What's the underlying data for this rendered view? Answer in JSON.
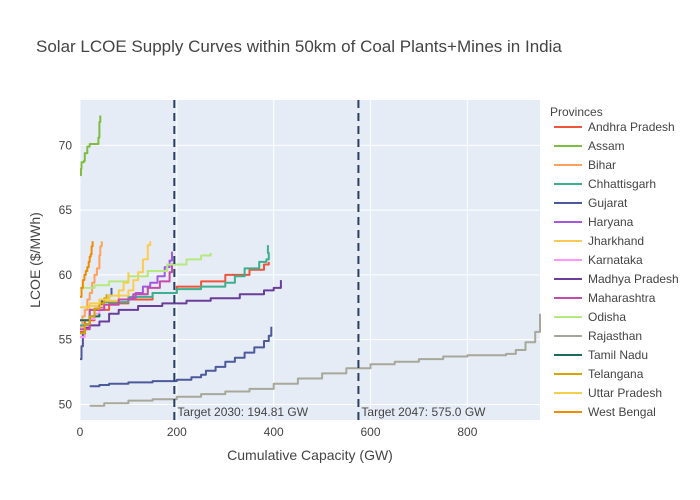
{
  "chart_data": {
    "type": "line",
    "title": "Solar LCOE Supply Curves within 50km of Coal Plants+Mines in India",
    "xlabel": "Cumulative Capacity (GW)",
    "ylabel": "LCOE ($/MWh)",
    "xlim": [
      0,
      950
    ],
    "ylim": [
      48.8,
      73.5
    ],
    "xticks": [
      0,
      200,
      400,
      600,
      800
    ],
    "yticks": [
      50,
      55,
      60,
      65,
      70
    ],
    "grid": true,
    "plot_background": "#e5ecf6",
    "legend": {
      "title": "Provinces",
      "placement": "right"
    },
    "annotations": [
      {
        "x": 194.81,
        "text": "Target 2030: 194.81 GW",
        "style": "dashed",
        "color": "#2a3f5f"
      },
      {
        "x": 575.0,
        "text": "Target 2047: 575.0 GW",
        "style": "dashed",
        "color": "#2a3f5f"
      }
    ],
    "series": [
      {
        "name": "Andhra Pradesh",
        "color": "#EF553B",
        "x": [
          0,
          10,
          30,
          60,
          100,
          150,
          200,
          250,
          300,
          350,
          380,
          390
        ],
        "y": [
          55.6,
          56.5,
          57.3,
          57.8,
          58.1,
          58.6,
          59.1,
          59.5,
          60.0,
          60.4,
          60.8,
          61.0
        ]
      },
      {
        "name": "Assam",
        "color": "#7fbc41",
        "x": [
          0,
          2,
          3,
          5,
          8,
          10,
          15,
          20,
          30,
          38,
          40,
          42
        ],
        "y": [
          67.7,
          68.2,
          68.7,
          68.7,
          68.8,
          69.4,
          69.9,
          70.1,
          70.1,
          70.6,
          71.8,
          72.3
        ]
      },
      {
        "name": "Bihar",
        "color": "#FFA15A",
        "x": [
          0,
          5,
          10,
          15,
          20,
          25,
          30,
          35,
          40,
          42,
          45
        ],
        "y": [
          56.0,
          56.8,
          57.3,
          58.1,
          58.6,
          59.4,
          60.0,
          60.5,
          61.5,
          62.2,
          62.6
        ]
      },
      {
        "name": "Chhattisgarh",
        "color": "#3daf8f",
        "x": [
          0,
          20,
          50,
          100,
          150,
          200,
          250,
          300,
          320,
          340,
          370,
          385,
          390,
          388
        ],
        "y": [
          56.1,
          57.3,
          57.9,
          58.3,
          58.6,
          58.9,
          59.1,
          59.4,
          59.9,
          60.5,
          61.0,
          61.2,
          61.7,
          62.3
        ]
      },
      {
        "name": "Gujarat",
        "color": "#4c5a9c",
        "x": [
          0,
          3,
          6,
          10,
          20,
          30,
          45,
          60,
          65
        ],
        "y": [
          53.5,
          54.5,
          55.4,
          56.2,
          56.8,
          57.4,
          58.0,
          58.4,
          59.0
        ]
      },
      {
        "name": "Haryana",
        "color": "#a358e0",
        "x": [
          100,
          115,
          130,
          145,
          160,
          175,
          185,
          190
        ],
        "y": [
          58.2,
          58.6,
          59.1,
          59.4,
          59.9,
          60.6,
          61.1,
          61.8
        ]
      },
      {
        "name": "Jharkhand",
        "color": "#FECB52",
        "x": [
          0,
          20,
          50,
          80,
          100,
          110,
          120,
          130,
          140,
          145
        ],
        "y": [
          56.5,
          57.6,
          58.0,
          58.4,
          58.8,
          59.6,
          60.2,
          61.2,
          62.3,
          62.6
        ]
      },
      {
        "name": "Karnataka",
        "color": "#ff97ff",
        "x": [
          0,
          10,
          20,
          30,
          40,
          50
        ],
        "y": [
          55.2,
          56.0,
          56.6,
          57.0,
          57.4,
          57.8
        ]
      },
      {
        "name": "Madhya Pradesh",
        "color": "#6a3d9a",
        "x": [
          0,
          10,
          20,
          40,
          60,
          80,
          120,
          170,
          220,
          270,
          330,
          380,
          400,
          415
        ],
        "y": [
          55.5,
          55.9,
          56.1,
          56.4,
          57.0,
          57.3,
          57.6,
          57.8,
          58.0,
          58.2,
          58.5,
          58.8,
          59.0,
          59.6
        ]
      },
      {
        "name": "Maharashtra",
        "color": "#c44ba6",
        "x": [
          0,
          20,
          50,
          80,
          110,
          140,
          165,
          185,
          190
        ],
        "y": [
          55.8,
          57.3,
          57.7,
          58.1,
          58.5,
          59.0,
          59.5,
          60.2,
          60.9
        ]
      },
      {
        "name": "Odisha",
        "color": "#b6e880",
        "x": [
          0,
          30,
          60,
          100,
          140,
          180,
          220,
          250,
          270
        ],
        "y": [
          59.0,
          59.2,
          59.5,
          59.9,
          60.3,
          60.8,
          61.2,
          61.5,
          61.7
        ]
      },
      {
        "name": "Rajasthan",
        "color": "#a7a79a",
        "x": [
          20,
          50,
          100,
          150,
          200,
          250,
          300,
          350,
          400,
          450,
          500,
          550,
          600,
          650,
          700,
          750,
          800,
          850,
          880,
          900,
          920,
          940,
          950
        ],
        "y": [
          49.9,
          50.1,
          50.3,
          50.4,
          50.6,
          50.8,
          51.0,
          51.2,
          51.6,
          52.0,
          52.4,
          52.8,
          53.1,
          53.3,
          53.5,
          53.7,
          53.8,
          53.8,
          53.9,
          54.2,
          54.8,
          55.6,
          57.0
        ]
      },
      {
        "name": "Tamil Nadu",
        "color": "#1b6b5a",
        "x": [
          0,
          20,
          40
        ],
        "y": [
          56.5,
          56.8,
          57.0
        ]
      },
      {
        "name": "Telangana",
        "color": "#d6a400",
        "x": [
          0,
          10,
          20,
          30,
          40,
          50,
          55
        ],
        "y": [
          55.5,
          56.2,
          56.8,
          57.4,
          57.8,
          58.2,
          58.5
        ]
      },
      {
        "name": "Uttar Pradesh",
        "color": "#f6cf4a",
        "x": [
          0,
          20,
          40,
          60,
          80,
          90,
          100
        ],
        "y": [
          57.5,
          57.8,
          58.1,
          58.4,
          58.8,
          59.4,
          60.2
        ]
      },
      {
        "name": "West Bengal",
        "color": "#f08a00",
        "x": [
          0,
          3,
          6,
          9,
          12,
          15,
          18,
          20,
          22,
          24,
          26
        ],
        "y": [
          58.3,
          59.0,
          59.6,
          60.0,
          60.3,
          60.6,
          61.0,
          61.4,
          61.6,
          62.2,
          62.6
        ]
      },
      {
        "name": "",
        "color": "#4c5a9c",
        "x": [
          20,
          40,
          60,
          100,
          150,
          190,
          200,
          230,
          250,
          260,
          280,
          300,
          320,
          340,
          360,
          380,
          390,
          395
        ],
        "y": [
          51.4,
          51.5,
          51.6,
          51.7,
          51.8,
          51.8,
          51.9,
          52.1,
          52.3,
          52.6,
          52.9,
          53.3,
          53.6,
          54.0,
          54.4,
          54.9,
          55.3,
          56.0
        ]
      }
    ]
  }
}
